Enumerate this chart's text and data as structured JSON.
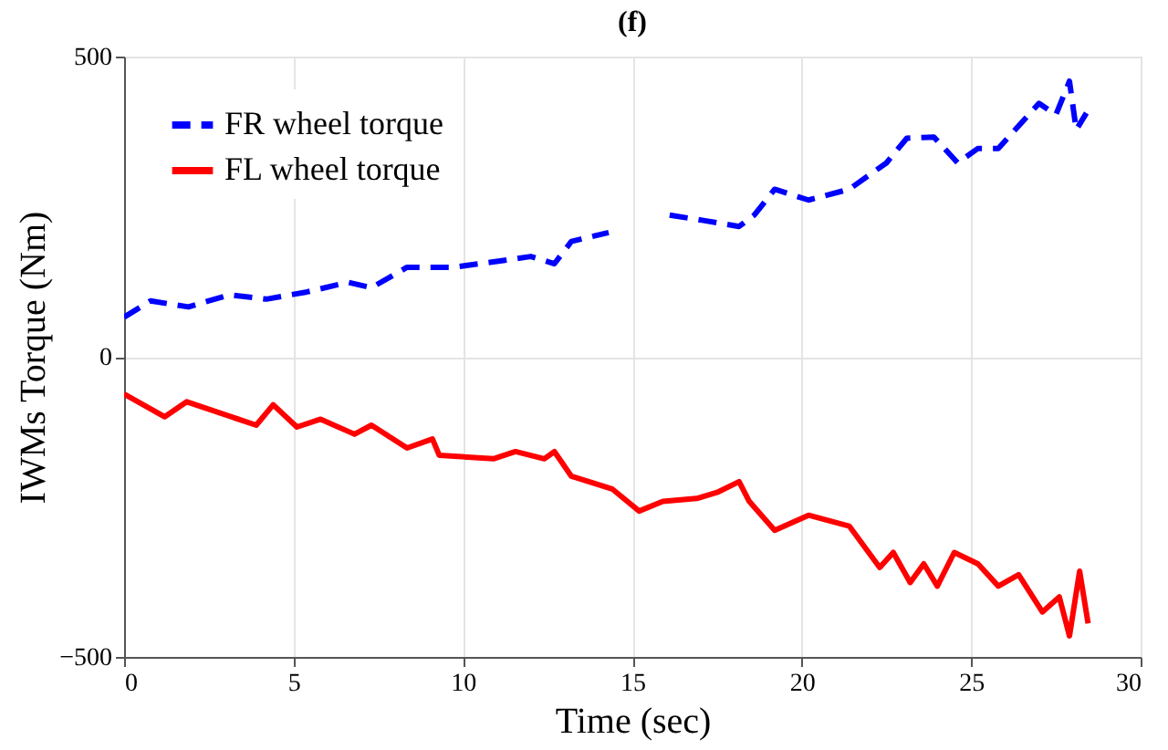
{
  "chart_data": {
    "type": "line",
    "title": "(f)",
    "xlabel": "Time (sec)",
    "ylabel": "IWMs Torque (Nm)",
    "xlim": [
      0,
      30
    ],
    "xticks": [
      0,
      5,
      10,
      15,
      20,
      25,
      30
    ],
    "ylim": [
      -500,
      500
    ],
    "yticks": [
      -500,
      0,
      500
    ],
    "grid": true,
    "legend": "top left",
    "marker": "none",
    "series": [
      {
        "name": "FR wheel torque",
        "color": "#0000ff",
        "line_style": "dashed",
        "x": [
          0,
          0.78,
          1.9,
          3.1,
          4.2,
          5.4,
          6.6,
          7.3,
          8.35,
          9.7,
          10.9,
          12.0,
          12.7,
          13.2,
          14.3,
          15.2,
          16.1,
          17.1,
          18.15,
          18.6,
          19.2,
          20.2,
          21.4,
          22.5,
          23.1,
          23.9,
          24.6,
          25.2,
          25.8,
          27.0,
          27.5,
          27.9,
          28.1,
          28.4
        ],
        "values": [
          66,
          93,
          83,
          103,
          96,
          108,
          124,
          115,
          149,
          149,
          158,
          167,
          155,
          192,
          207,
          null,
          236,
          227,
          217,
          236,
          279,
          261,
          279,
          323,
          364,
          366,
          323,
          347,
          347,
          422,
          403,
          459,
          378,
          406
        ]
      },
      {
        "name": "FL wheel torque",
        "color": "#ff0000",
        "line_style": "solid",
        "x": [
          0,
          1.2,
          1.85,
          3.9,
          4.4,
          5.1,
          5.8,
          6.8,
          7.3,
          8.35,
          9.1,
          9.3,
          10.9,
          11.55,
          12.4,
          12.7,
          13.2,
          14.4,
          15.2,
          15.9,
          16.9,
          17.5,
          18.15,
          18.45,
          19.2,
          20.2,
          21.4,
          22.3,
          22.7,
          23.2,
          23.6,
          24.0,
          24.5,
          25.2,
          25.8,
          26.4,
          27.1,
          27.6,
          27.9,
          28.2,
          28.45
        ],
        "values": [
          -62,
          -100,
          -75,
          -114,
          -80,
          -117,
          -104,
          -129,
          -114,
          -152,
          -137,
          -164,
          -170,
          -158,
          -170,
          -158,
          -199,
          -220,
          -257,
          -241,
          -236,
          -226,
          -208,
          -241,
          -289,
          -264,
          -282,
          -351,
          -326,
          -376,
          -345,
          -382,
          -326,
          -345,
          -382,
          -363,
          -425,
          -400,
          -465,
          -357,
          -444
        ]
      }
    ]
  }
}
